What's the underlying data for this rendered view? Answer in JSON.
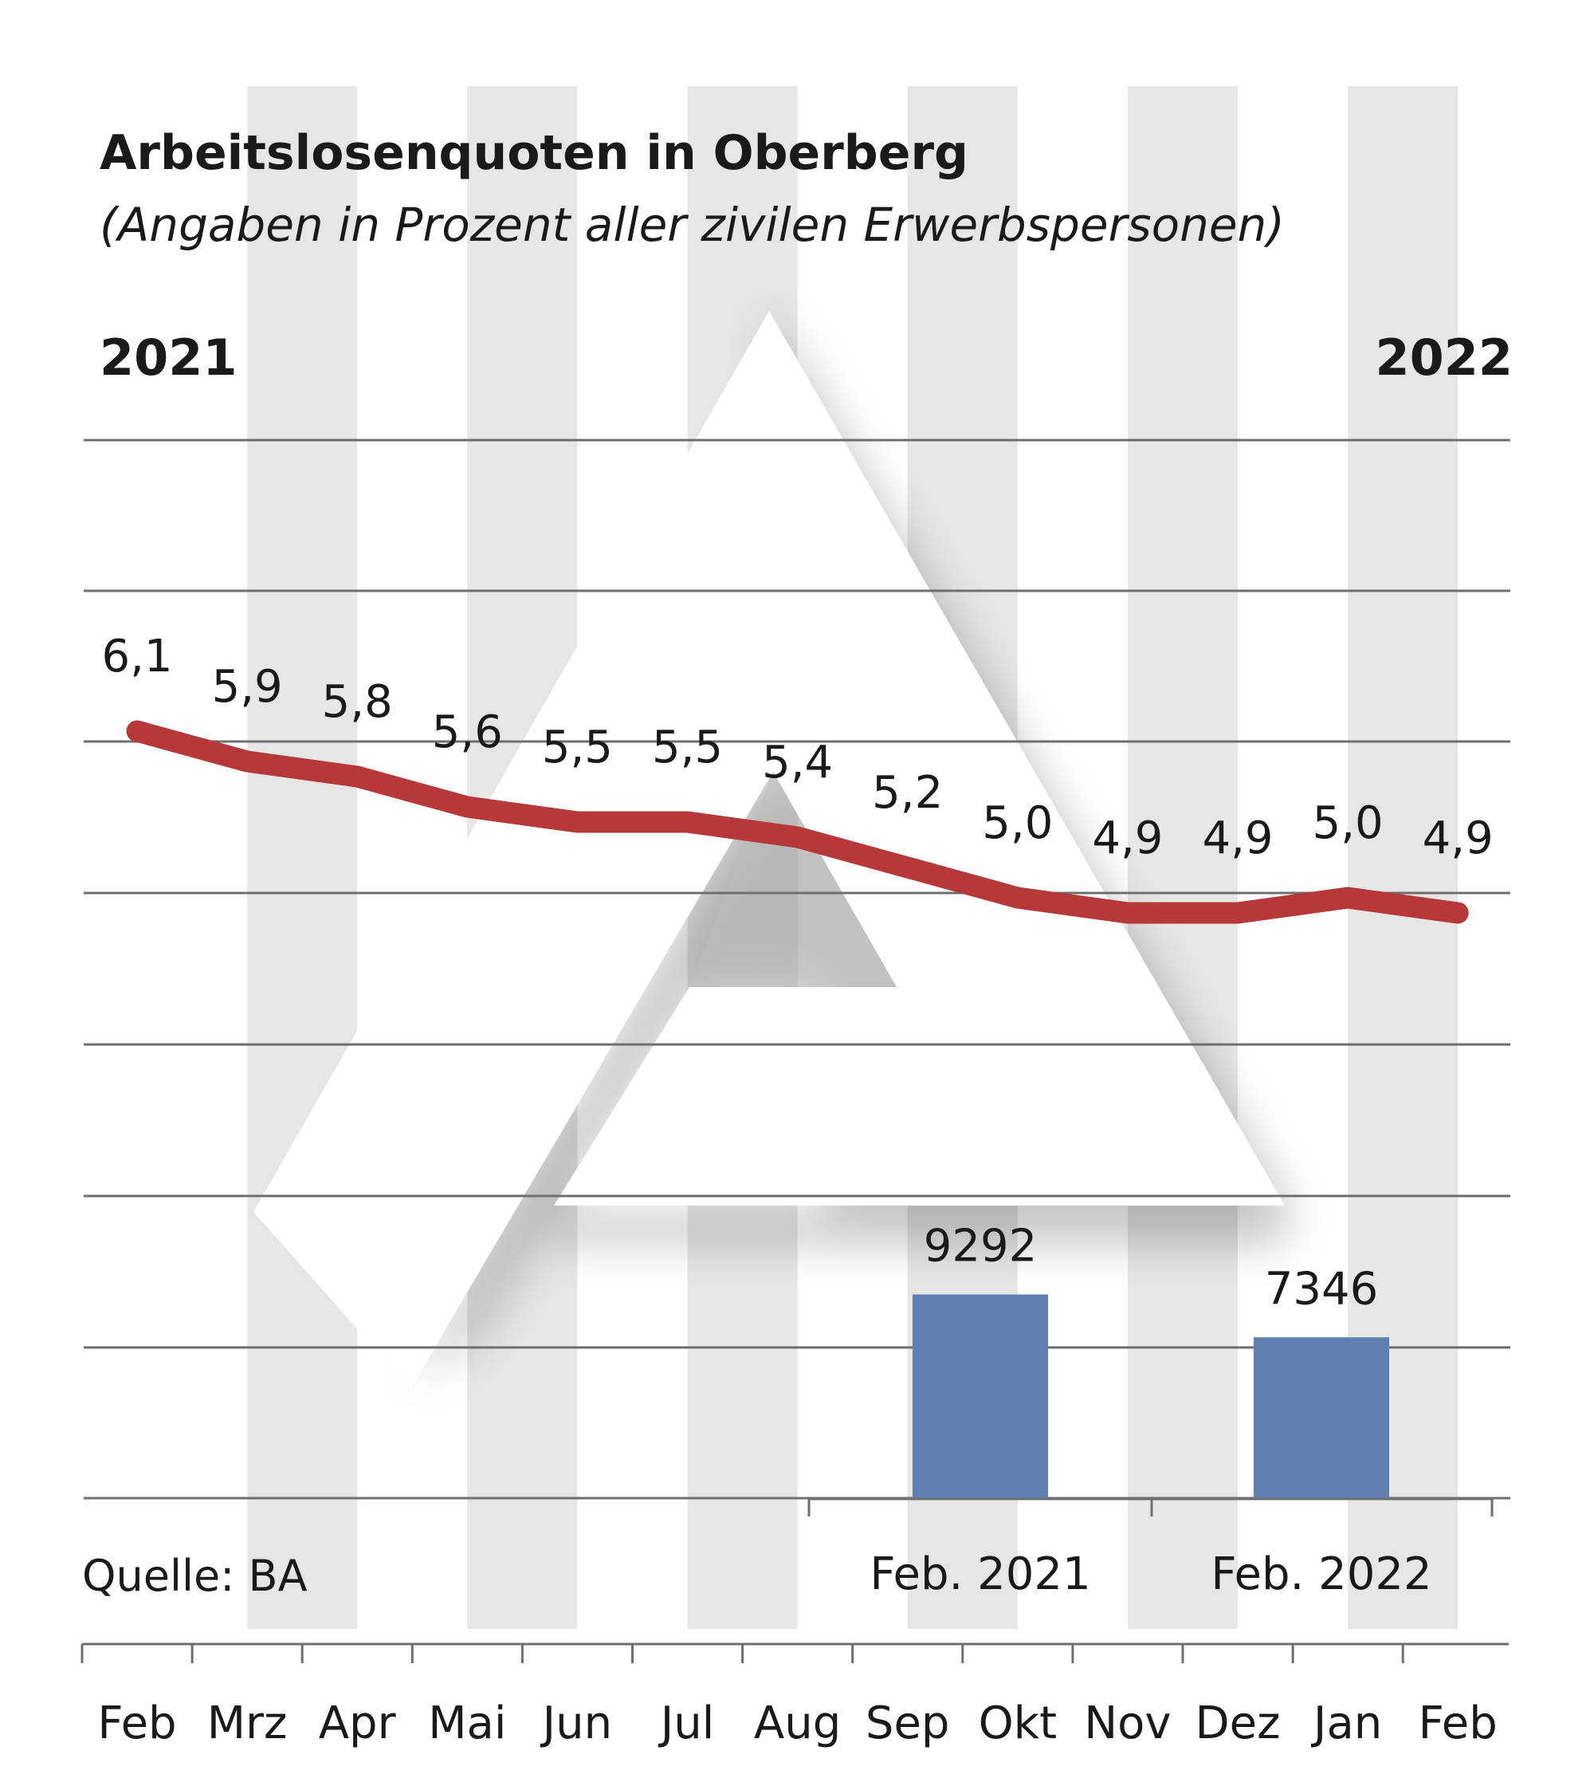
{
  "title": "Arbeitslosenquoten in Oberberg",
  "subtitle": "(Angaben in Prozent aller zivilen Erwerbspersonen)",
  "year_start": "2021",
  "year_end": "2022",
  "source": "Quelle: BA",
  "colors": {
    "line": "#b63838",
    "bars": "#5f80b0",
    "stripe": "#e6e6e5",
    "grid": "#6f6f6f"
  },
  "chart_data": [
    {
      "type": "line",
      "title": "Arbeitslosenquoten in Oberberg",
      "subtitle": "(Angaben in Prozent aller zivilen Erwerbspersonen)",
      "categories": [
        "Feb",
        "Mrz",
        "Apr",
        "Mai",
        "Jun",
        "Jul",
        "Aug",
        "Sep",
        "Okt",
        "Nov",
        "Dez",
        "Jan",
        "Feb"
      ],
      "values": [
        6.1,
        5.9,
        5.8,
        5.6,
        5.5,
        5.5,
        5.4,
        5.2,
        5.0,
        4.9,
        4.9,
        5.0,
        4.9
      ],
      "value_labels": [
        "6,1",
        "5,9",
        "5,8",
        "5,6",
        "5,5",
        "5,5",
        "5,4",
        "5,2",
        "5,0",
        "4,9",
        "4,9",
        "5,0",
        "4,9"
      ],
      "grid": true
    },
    {
      "type": "bar",
      "categories": [
        "Feb. 2021",
        "Feb. 2022"
      ],
      "values": [
        9292,
        7346
      ],
      "value_labels": [
        "9292",
        "7346"
      ]
    }
  ]
}
